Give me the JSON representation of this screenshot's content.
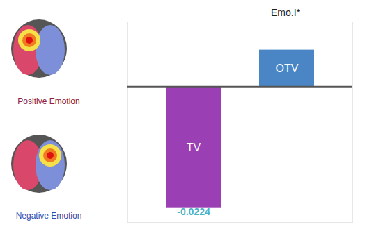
{
  "chart_data": {
    "type": "bar",
    "title": "Emo.I*",
    "categories": [
      "TV",
      "OTV"
    ],
    "values": [
      -0.0224,
      0.0068
    ],
    "colors": [
      "#9b3fb5",
      "#4a86c5"
    ],
    "ylim": [
      -0.025,
      0.012
    ],
    "data_labels": true,
    "value_labels": [
      "-0.0224",
      null
    ],
    "tick_labels": false,
    "annotations": [
      "Positive Emotion",
      "Negative Emotion"
    ]
  }
}
